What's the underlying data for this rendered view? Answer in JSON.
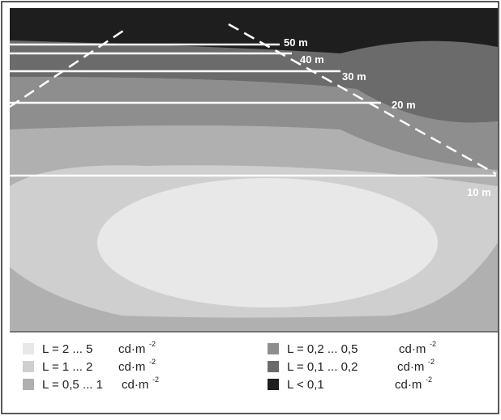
{
  "distance_labels": [
    "50 m",
    "40 m",
    "30 m",
    "20 m",
    "10 m"
  ],
  "legend": [
    {
      "label": "L = 2 ... 5",
      "unit": "cd·m",
      "exponent": "-2"
    },
    {
      "label": "L = 1 ... 2",
      "unit": "cd·m",
      "exponent": "-2"
    },
    {
      "label": "L = 0,5 ... 1",
      "unit": "cd·m",
      "exponent": "-2"
    },
    {
      "label": "L = 0,2 ... 0,5",
      "unit": "cd·m",
      "exponent": "-2"
    },
    {
      "label": "L = 0,1 ... 0,2",
      "unit": "cd·m",
      "exponent": "-2"
    },
    {
      "label": "L < 0,1",
      "unit": "cd·m",
      "exponent": "-2"
    }
  ]
}
